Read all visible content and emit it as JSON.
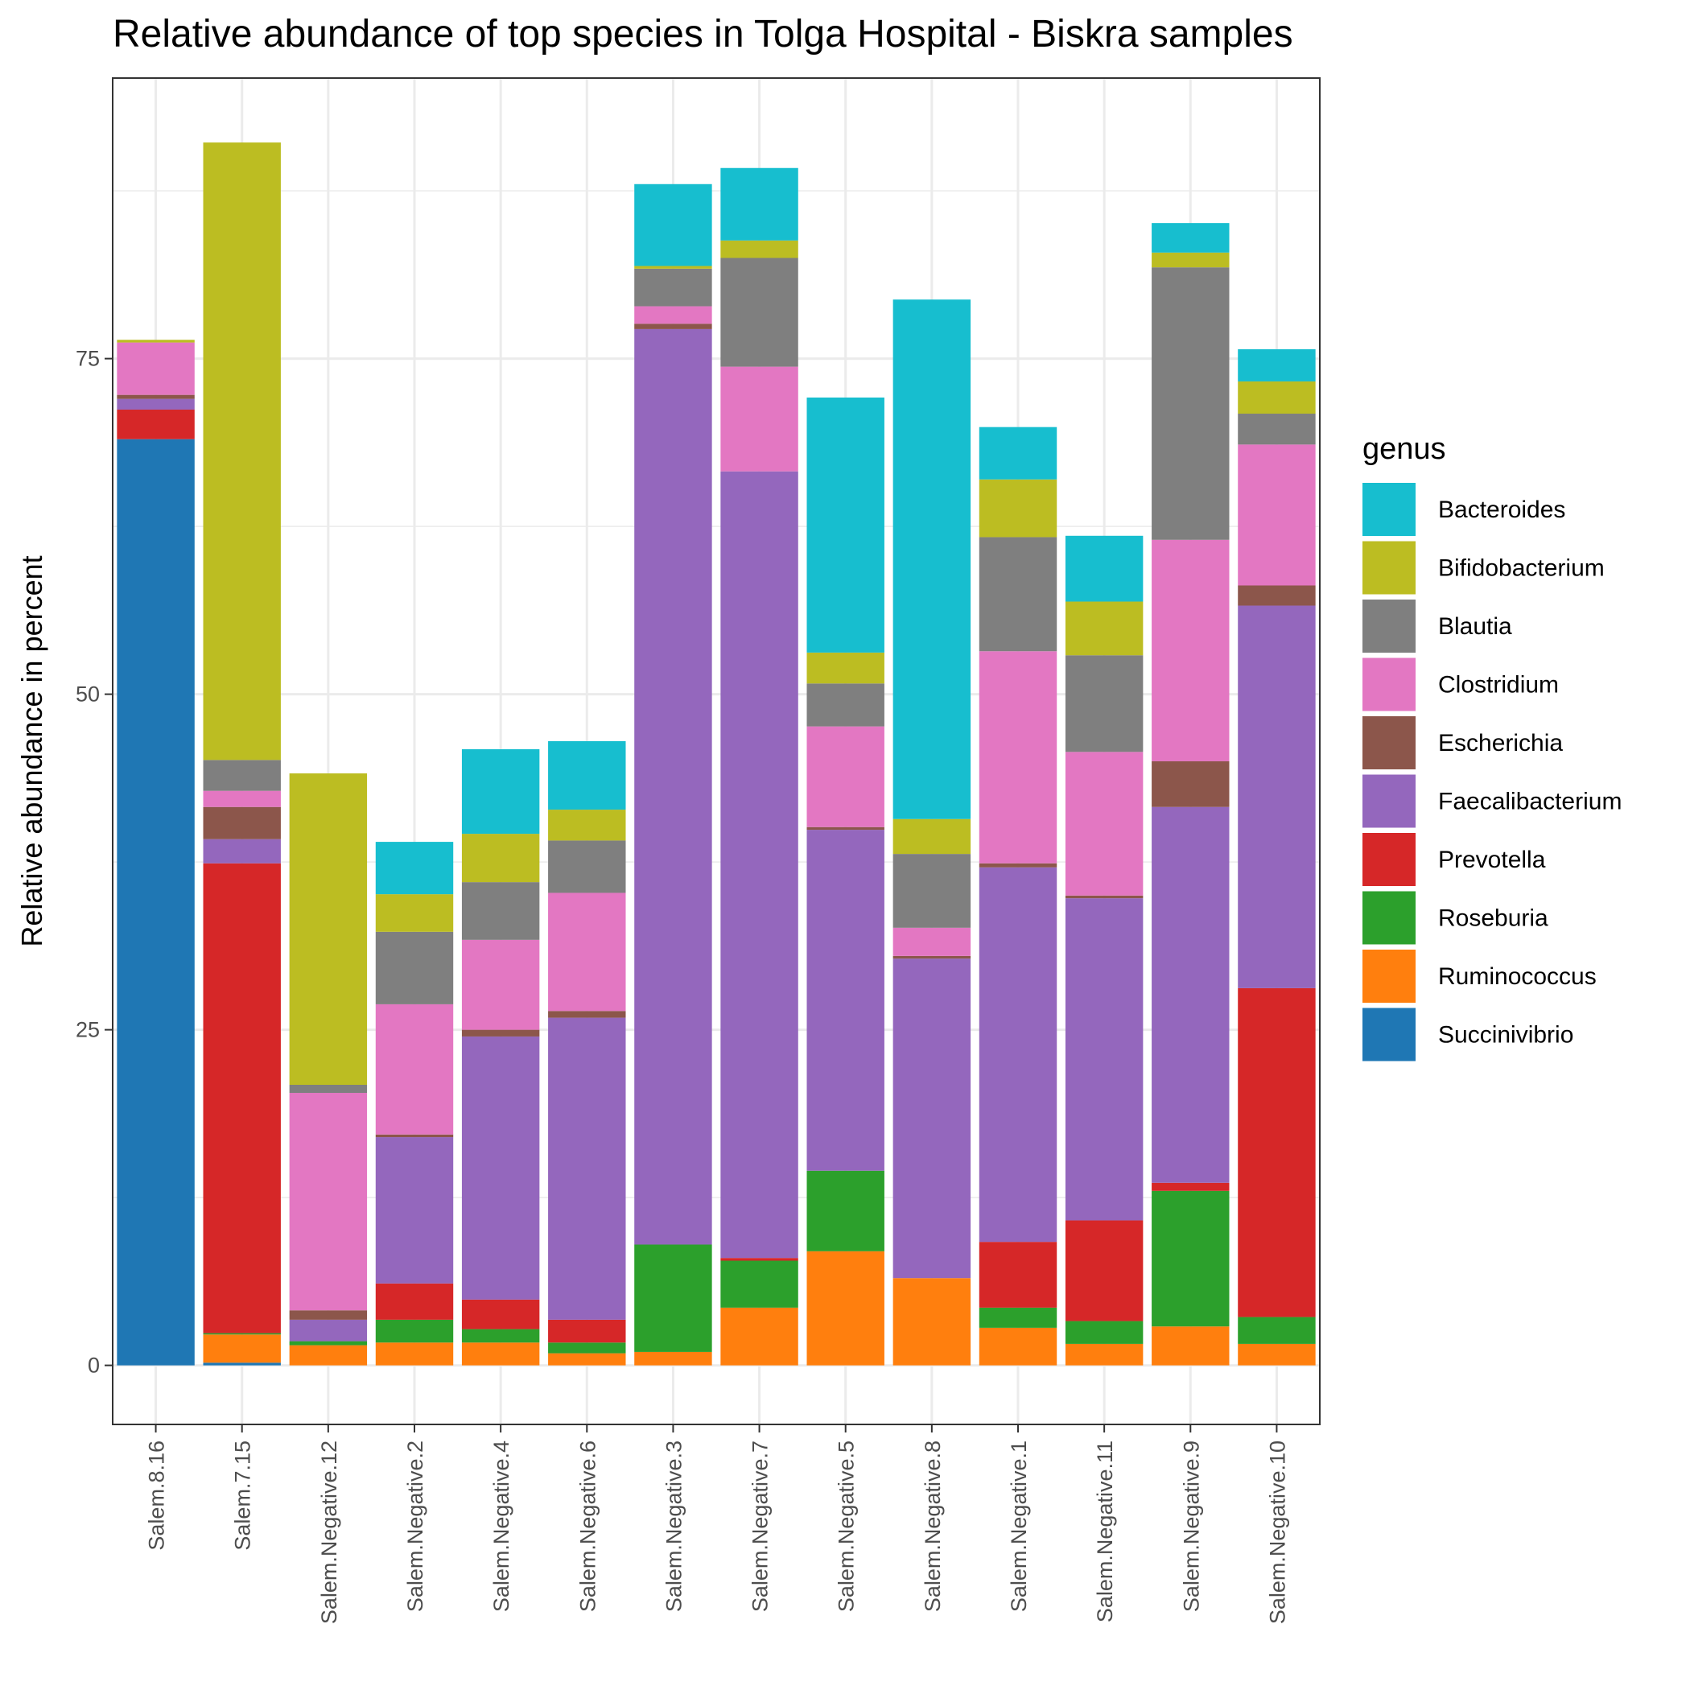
{
  "chart_data": {
    "type": "bar",
    "stacked": true,
    "title": "Relative abundance of top species in Tolga Hospital - Biskra  samples",
    "xlabel": "",
    "ylabel": "Relative abundance in percent",
    "ylim": [
      -4.4,
      95.9
    ],
    "yticks": [
      0,
      25,
      50,
      75
    ],
    "grid": true,
    "legend": {
      "title": "genus",
      "position": "right"
    },
    "categories": [
      "Salem.8.16",
      "Salem.7.15",
      "Salem.Negative.12",
      "Salem.Negative.2",
      "Salem.Negative.4",
      "Salem.Negative.6",
      "Salem.Negative.3",
      "Salem.Negative.7",
      "Salem.Negative.5",
      "Salem.Negative.8",
      "Salem.Negative.1",
      "Salem.Negative.11",
      "Salem.Negative.9",
      "Salem.Negative.10"
    ],
    "series": [
      {
        "name": "Succinivibrio",
        "color": "#1F77B4",
        "values": [
          69.0,
          0.2,
          0.0,
          0.0,
          0.0,
          0.0,
          0.0,
          0.0,
          0.0,
          0.0,
          0.0,
          0.0,
          0.0,
          0.0
        ]
      },
      {
        "name": "Ruminococcus",
        "color": "#FF7F0E",
        "values": [
          0.0,
          2.1,
          1.5,
          1.7,
          1.7,
          0.9,
          1.0,
          4.3,
          8.5,
          6.5,
          2.8,
          1.6,
          2.9,
          1.6
        ]
      },
      {
        "name": "Roseburia",
        "color": "#2CA02C",
        "values": [
          0.0,
          0.1,
          0.3,
          1.7,
          1.0,
          0.8,
          8.0,
          3.5,
          6.0,
          0.0,
          1.5,
          1.7,
          10.1,
          2.0
        ]
      },
      {
        "name": "Prevotella",
        "color": "#D62728",
        "values": [
          2.2,
          35.0,
          0.0,
          2.7,
          2.2,
          1.7,
          0.0,
          0.2,
          0.0,
          0.0,
          4.9,
          7.5,
          0.6,
          24.5
        ]
      },
      {
        "name": "Faecalibacterium",
        "color": "#9467BD",
        "values": [
          0.8,
          1.8,
          1.6,
          10.9,
          19.6,
          22.5,
          68.2,
          58.6,
          25.4,
          23.8,
          27.9,
          24.0,
          28.0,
          28.5
        ]
      },
      {
        "name": "Escherichia",
        "color": "#8C564B",
        "values": [
          0.3,
          2.4,
          0.7,
          0.2,
          0.5,
          0.5,
          0.4,
          0.0,
          0.2,
          0.2,
          0.3,
          0.2,
          3.4,
          1.5
        ]
      },
      {
        "name": "Clostridium",
        "color": "#E377C2",
        "values": [
          3.9,
          1.2,
          16.2,
          9.7,
          6.7,
          8.8,
          1.3,
          7.8,
          7.5,
          2.1,
          15.8,
          10.7,
          16.5,
          10.5
        ]
      },
      {
        "name": "Blautia",
        "color": "#7F7F7F",
        "values": [
          0.0,
          2.3,
          0.6,
          5.4,
          4.3,
          3.9,
          2.8,
          8.1,
          3.2,
          5.5,
          8.5,
          7.2,
          20.3,
          2.3
        ]
      },
      {
        "name": "Bifidobacterium",
        "color": "#BCBD22",
        "values": [
          0.2,
          46.0,
          23.2,
          2.8,
          3.6,
          2.3,
          0.2,
          1.3,
          2.3,
          2.6,
          4.3,
          4.0,
          1.1,
          2.4
        ]
      },
      {
        "name": "Bacteroides",
        "color": "#17BECF",
        "values": [
          0.0,
          0.0,
          0.0,
          3.9,
          6.3,
          5.1,
          6.1,
          5.4,
          19.0,
          38.7,
          3.9,
          4.9,
          2.2,
          2.4
        ]
      }
    ],
    "legend_order": [
      "Bacteroides",
      "Bifidobacterium",
      "Blautia",
      "Clostridium",
      "Escherichia",
      "Faecalibacterium",
      "Prevotella",
      "Roseburia",
      "Ruminococcus",
      "Succinivibrio"
    ]
  }
}
